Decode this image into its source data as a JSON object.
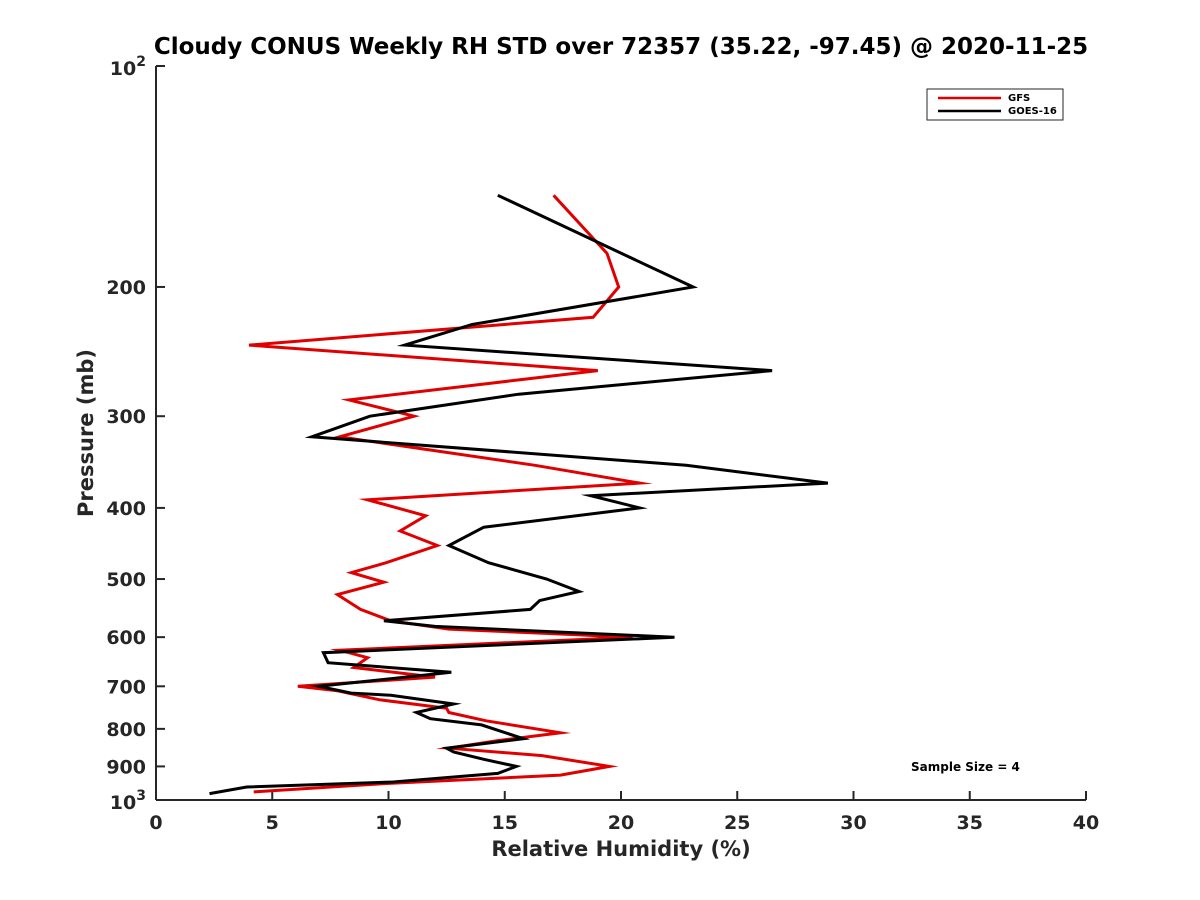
{
  "chart_data": {
    "type": "line",
    "title": "Cloudy CONUS Weekly RH STD over 72357 (35.22, -97.45) @ 2020-11-25",
    "xlabel": "Relative Humidity (%)",
    "ylabel": "Pressure (mb)",
    "xlim": [
      0,
      40
    ],
    "ylim": [
      100,
      1000
    ],
    "y_scale": "log",
    "y_reversed": true,
    "x_ticks": [
      "0",
      "5",
      "10",
      "15",
      "20",
      "25",
      "30",
      "35",
      "40"
    ],
    "y_ticks": [
      {
        "value": 100,
        "base": "10",
        "exp": "2"
      },
      {
        "value": 200,
        "label": "200"
      },
      {
        "value": 300,
        "label": "300"
      },
      {
        "value": 400,
        "label": "400"
      },
      {
        "value": 500,
        "label": "500"
      },
      {
        "value": 600,
        "label": "600"
      },
      {
        "value": 700,
        "label": "700"
      },
      {
        "value": 800,
        "label": "800"
      },
      {
        "value": 900,
        "label": "900"
      },
      {
        "value": 1000,
        "base": "10",
        "exp": "3"
      }
    ],
    "grid": false,
    "legend": "top-right",
    "annotation": "Sample Size = 4",
    "series": [
      {
        "name": "GFS",
        "color": "#e00000",
        "points": [
          [
            17.1,
            150
          ],
          [
            19.4,
            180
          ],
          [
            19.9,
            200
          ],
          [
            18.8,
            220
          ],
          [
            4.0,
            240
          ],
          [
            19.0,
            260
          ],
          [
            8.3,
            285
          ],
          [
            11.1,
            300
          ],
          [
            7.9,
            320
          ],
          [
            16.3,
            350
          ],
          [
            20.8,
            370
          ],
          [
            9.1,
            390
          ],
          [
            11.6,
            410
          ],
          [
            10.5,
            430
          ],
          [
            12.1,
            450
          ],
          [
            9.9,
            475
          ],
          [
            8.4,
            490
          ],
          [
            9.8,
            505
          ],
          [
            7.8,
            525
          ],
          [
            8.8,
            550
          ],
          [
            10.1,
            570
          ],
          [
            12.6,
            585
          ],
          [
            20.5,
            600
          ],
          [
            7.9,
            625
          ],
          [
            9.1,
            640
          ],
          [
            8.5,
            660
          ],
          [
            12.0,
            680
          ],
          [
            6.1,
            700
          ],
          [
            7.8,
            710
          ],
          [
            9.6,
            730
          ],
          [
            12.5,
            750
          ],
          [
            12.6,
            760
          ],
          [
            14.2,
            780
          ],
          [
            17.4,
            810
          ],
          [
            14.7,
            830
          ],
          [
            12.6,
            850
          ],
          [
            16.6,
            870
          ],
          [
            19.5,
            900
          ],
          [
            17.4,
            925
          ],
          [
            9.8,
            950
          ],
          [
            4.2,
            975
          ]
        ]
      },
      {
        "name": "GOES-16",
        "color": "#000000",
        "points": [
          [
            14.7,
            150
          ],
          [
            23.1,
            200
          ],
          [
            13.6,
            225
          ],
          [
            10.7,
            240
          ],
          [
            26.5,
            260
          ],
          [
            15.6,
            280
          ],
          [
            9.2,
            300
          ],
          [
            6.7,
            320
          ],
          [
            22.8,
            350
          ],
          [
            28.9,
            370
          ],
          [
            18.7,
            385
          ],
          [
            20.8,
            400
          ],
          [
            14.1,
            425
          ],
          [
            12.6,
            450
          ],
          [
            14.3,
            475
          ],
          [
            16.8,
            500
          ],
          [
            18.2,
            520
          ],
          [
            16.5,
            535
          ],
          [
            16.1,
            550
          ],
          [
            9.8,
            570
          ],
          [
            12.0,
            580
          ],
          [
            22.3,
            600
          ],
          [
            7.2,
            630
          ],
          [
            7.4,
            650
          ],
          [
            12.7,
            670
          ],
          [
            7.0,
            700
          ],
          [
            8.4,
            715
          ],
          [
            10.1,
            720
          ],
          [
            12.8,
            740
          ],
          [
            11.2,
            760
          ],
          [
            11.8,
            775
          ],
          [
            14.0,
            790
          ],
          [
            15.8,
            825
          ],
          [
            12.5,
            850
          ],
          [
            12.8,
            860
          ],
          [
            14.1,
            880
          ],
          [
            15.5,
            900
          ],
          [
            14.7,
            920
          ],
          [
            10.2,
            945
          ],
          [
            3.9,
            960
          ],
          [
            2.3,
            980
          ]
        ]
      }
    ]
  }
}
